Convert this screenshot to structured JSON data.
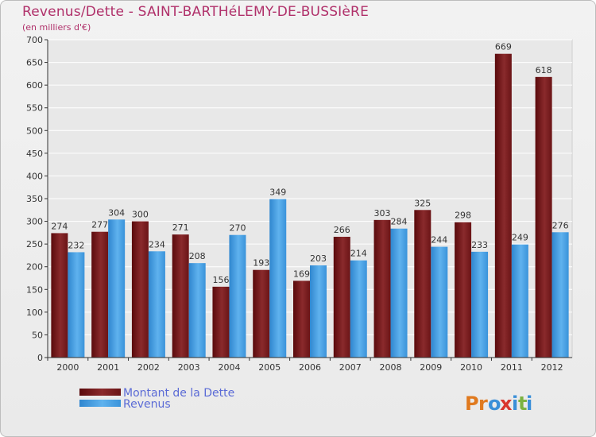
{
  "title": "Revenus/Dette - SAINT-BARTHéLEMY-DE-BUSSIèRE",
  "subtitle": "(en milliers d'€)",
  "logo": {
    "text": "Proxiti",
    "letters": [
      "P",
      "r",
      "o",
      "x",
      "i",
      "t",
      "i"
    ],
    "colors": [
      "#e07a1f",
      "#e07a1f",
      "#3a8fd8",
      "#d9362e",
      "#3a8fd8",
      "#7cb342",
      "#3a8fd8"
    ]
  },
  "chart_data": {
    "type": "bar",
    "title": "Revenus/Dette - SAINT-BARTHéLEMY-DE-BUSSIèRE",
    "ylabel": "(en milliers d'€)",
    "ylim": [
      0,
      700
    ],
    "ytick_step": 50,
    "grid": true,
    "legend_position": "bottom-left",
    "categories": [
      "2000",
      "2001",
      "2002",
      "2003",
      "2004",
      "2005",
      "2006",
      "2007",
      "2008",
      "2009",
      "2010",
      "2011",
      "2012"
    ],
    "series": [
      {
        "name": "Montant de la Dette",
        "color": "#7a1a1c",
        "values": [
          274,
          277,
          300,
          271,
          156,
          193,
          169,
          266,
          303,
          325,
          298,
          669,
          618
        ]
      },
      {
        "name": "Revenus",
        "color": "#3d9ae0",
        "values": [
          232,
          304,
          234,
          208,
          270,
          349,
          203,
          214,
          284,
          244,
          233,
          249,
          276
        ]
      }
    ]
  }
}
